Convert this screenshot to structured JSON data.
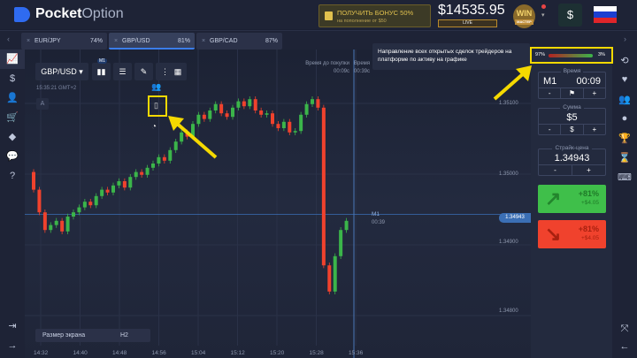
{
  "header": {
    "logo_bold": "Pocket",
    "logo_light": "Option",
    "bonus_line1": "ПОЛУЧИТЬ БОНУС 50%",
    "bonus_line2": "на пополнение от $50",
    "balance": "$14535.95",
    "account_type": "LIVE",
    "level_badge": "WIN",
    "level_name": "МАСТЕР",
    "deposit_label": "$",
    "flag": "russia-flag"
  },
  "tabs": [
    {
      "label": "EUR/JPY",
      "payout": "74%"
    },
    {
      "label": "GBP/USD",
      "payout": "81%",
      "active": true
    },
    {
      "label": "GBP/CAD",
      "payout": "87%"
    }
  ],
  "chart": {
    "asset": "GBP/USD",
    "time_label": "15:35:21 GMT+2",
    "interval_badge": "M1",
    "indicator_letter": "A",
    "purchase_time_label": "Время до покупки",
    "purchase_time_value": "00:09с",
    "expiry_label": "Время",
    "expiry_value": "00:39с",
    "current_price": "1.34943",
    "timer_label": "M1",
    "timer_value": "00:39",
    "y_ticks": [
      "1.35100",
      "1.35000",
      "1.34900",
      "1.34800"
    ],
    "x_ticks": [
      "14:32",
      "14:40",
      "14:48",
      "14:56",
      "15:04",
      "15:12",
      "15:20",
      "15:28",
      "15:36"
    ],
    "screen_size_label": "Размер экрана",
    "screen_size_value": "H2",
    "candle_closes": [
      1.34978,
      1.34946,
      1.34921,
      1.34928,
      1.34934,
      1.34919,
      1.3494,
      1.34946,
      1.34953,
      1.34961,
      1.34956,
      1.34969,
      1.34978,
      1.34974,
      1.34984,
      1.3499,
      1.34981,
      1.34996,
      1.35003,
      1.34999,
      1.35009,
      1.35015,
      1.35024,
      1.35019,
      1.35034,
      1.35046,
      1.35059,
      1.35053,
      1.35071,
      1.35084,
      1.35078,
      1.3509,
      1.35099,
      1.35086,
      1.35081,
      1.35094,
      1.35103,
      1.35096,
      1.35106,
      1.3509,
      1.35084,
      1.35086,
      1.35071,
      1.35065,
      1.35074,
      1.35059,
      1.35061,
      1.35084,
      1.35099,
      1.35106,
      1.35094,
      1.34871,
      1.34834,
      1.34884,
      1.34921,
      1.34934
    ],
    "up_color": "#3bb54a",
    "down_color": "#f0422d"
  },
  "tooltip": {
    "text": "Направление всех открытых сделок трейдеров на платформе по активу на графике"
  },
  "sentiment": {
    "sell": "97%",
    "buy": "3%"
  },
  "panel": {
    "time_label": "Время",
    "time_mode": "M1",
    "time_value": "00:09",
    "amount_label": "Сумма",
    "amount_value": "$5",
    "amount_currency": "$",
    "strike_label": "Страйк-цена",
    "strike_value": "1.34943",
    "minus": "-",
    "plus": "+",
    "buy": {
      "percent": "+81%",
      "profit": "+$4.05",
      "color": "#3fbf4a"
    },
    "sell": {
      "percent": "+81%",
      "profit": "+$4.05",
      "color": "#f0422d"
    }
  }
}
